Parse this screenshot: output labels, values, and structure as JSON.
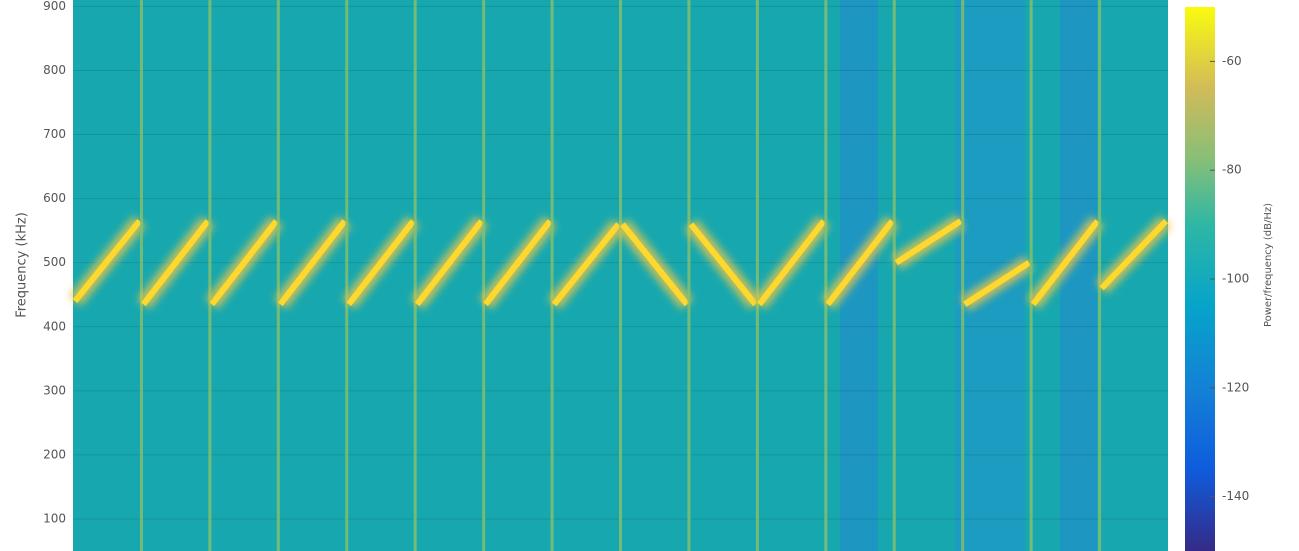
{
  "chart_data": {
    "type": "spectrogram",
    "ylabel": "Frequency (kHz)",
    "ylim": [
      50,
      910
    ],
    "yticks": [
      100,
      200,
      300,
      400,
      500,
      600,
      700,
      800,
      900
    ],
    "grid": true,
    "color": "#ffd82e",
    "segments": [
      [
        440,
        565
      ],
      [
        435,
        565
      ],
      [
        435,
        565
      ],
      [
        435,
        565
      ],
      [
        435,
        565
      ],
      [
        435,
        565
      ],
      [
        435,
        565
      ],
      [
        435,
        560
      ],
      [
        560,
        435
      ],
      [
        560,
        435
      ],
      [
        435,
        565
      ],
      [
        435,
        565
      ],
      [
        500,
        565
      ],
      [
        435,
        500
      ],
      [
        435,
        565
      ],
      [
        460,
        565
      ]
    ],
    "colorbar": {
      "label": "Power/frequency (dB/Hz)",
      "clim": [
        -150,
        -50
      ],
      "ticks": [
        -60,
        -80,
        -100,
        -120,
        -140
      ]
    }
  }
}
